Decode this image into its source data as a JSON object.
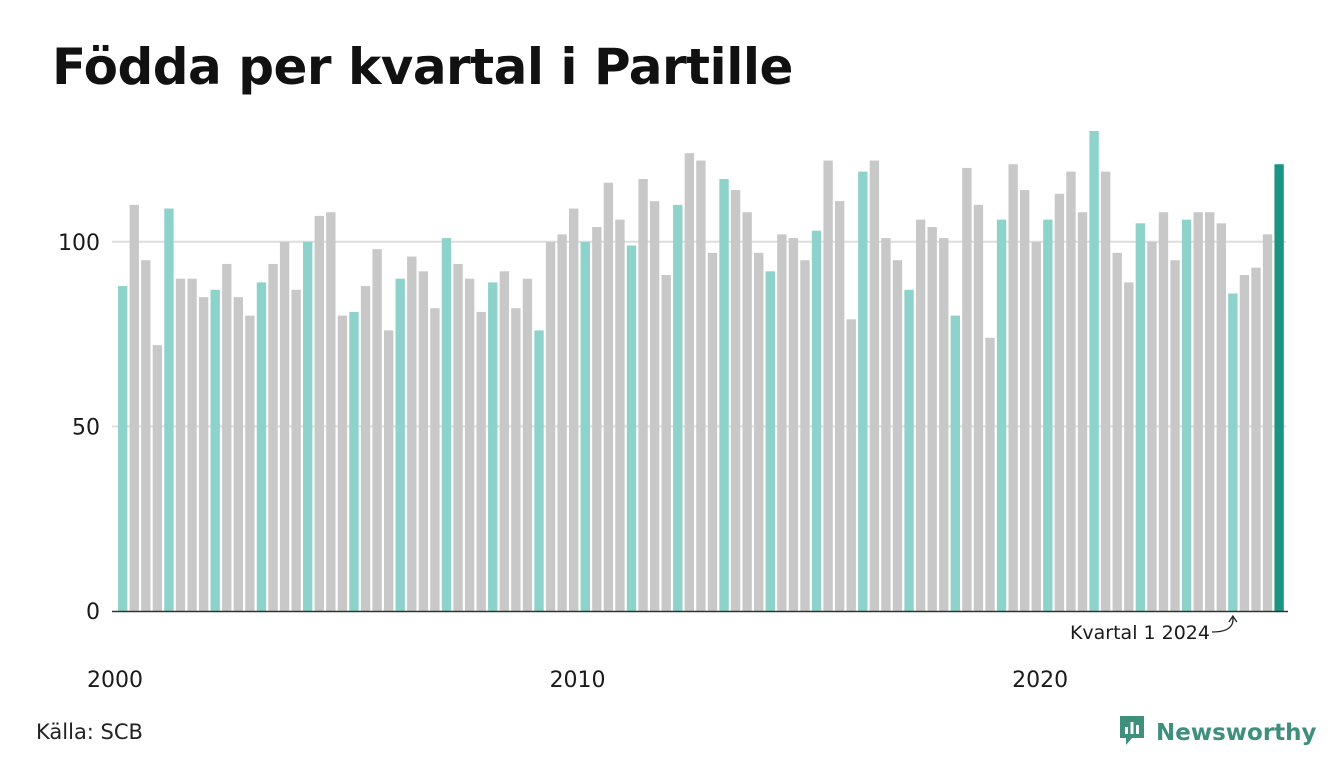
{
  "title": "Födda per kvartal i Partille",
  "source": "Källa: SCB",
  "brand": "Newsworthy",
  "icons": {
    "brand": "bar-chart-logo-icon",
    "annotation": "curved-arrow-icon"
  },
  "colors": {
    "q1": "#8dd3cb",
    "other": "#c8c8c8",
    "latest": "#1c9483",
    "grid": "#dddddd",
    "axis": "#333333",
    "brand": "#3e8f7c"
  },
  "chart_data": {
    "type": "bar",
    "title": "Födda per kvartal i Partille",
    "xlabel": "",
    "ylabel": "",
    "ylim": [
      0,
      130
    ],
    "yticks": [
      0,
      50,
      100
    ],
    "xticks": [
      "2000",
      "2010",
      "2020"
    ],
    "grid": true,
    "annotation": "Kvartal 1 2024",
    "start": {
      "year": 2000,
      "quarter": 1
    },
    "values": [
      88,
      110,
      95,
      72,
      109,
      90,
      90,
      85,
      87,
      94,
      85,
      80,
      89,
      94,
      100,
      87,
      100,
      107,
      108,
      80,
      81,
      88,
      98,
      76,
      90,
      96,
      92,
      82,
      101,
      94,
      90,
      81,
      89,
      92,
      82,
      90,
      76,
      100,
      102,
      109,
      100,
      104,
      116,
      106,
      99,
      117,
      111,
      91,
      110,
      124,
      122,
      97,
      117,
      114,
      108,
      97,
      92,
      102,
      101,
      95,
      103,
      122,
      111,
      79,
      119,
      122,
      101,
      95,
      87,
      106,
      104,
      101,
      80,
      120,
      110,
      74,
      106,
      121,
      114,
      100,
      106,
      113,
      119,
      108,
      130,
      119,
      97,
      89,
      105,
      100,
      108,
      95,
      106,
      108,
      108,
      105,
      86,
      91,
      93,
      102,
      121
    ]
  }
}
